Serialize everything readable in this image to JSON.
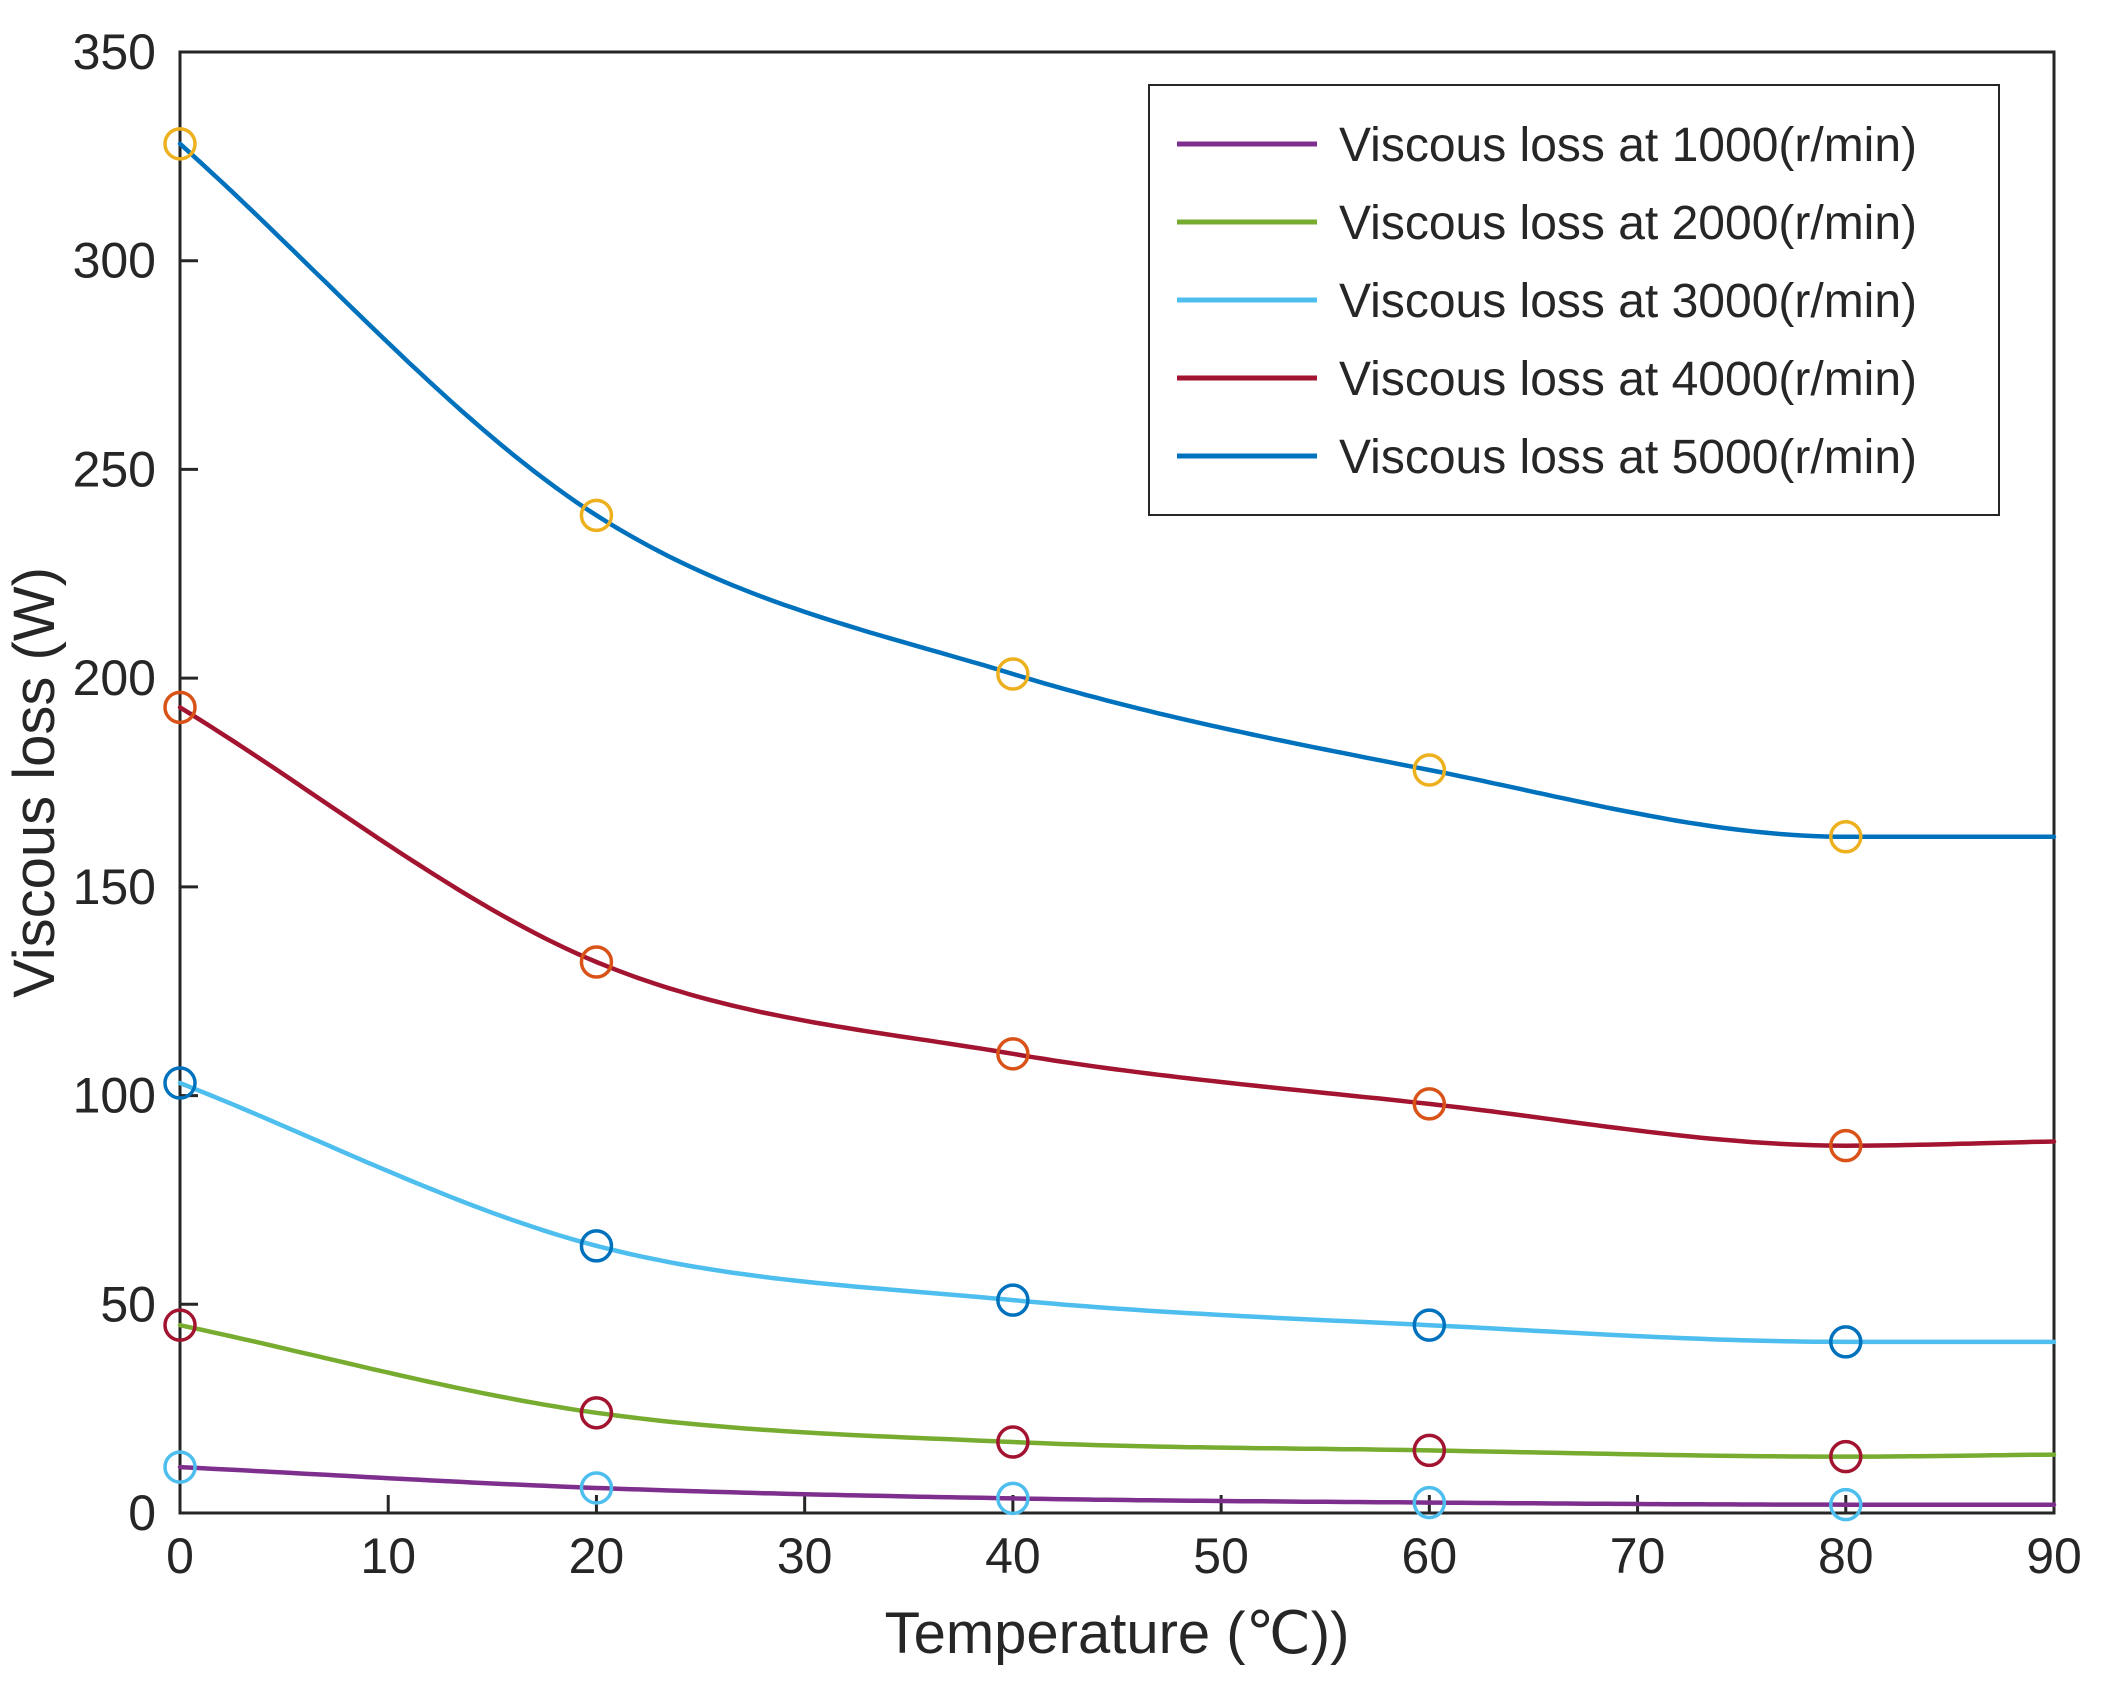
{
  "figure": {
    "background": "#ffffff",
    "axis_color": "#262626",
    "text_color": "#262626"
  },
  "chart_data": {
    "type": "line",
    "title": "",
    "xlabel": "Temperature (℃))",
    "ylabel": "Viscous loss (W)",
    "xlim": [
      0,
      90
    ],
    "ylim": [
      0,
      350
    ],
    "xticks": [
      0,
      10,
      20,
      30,
      40,
      50,
      60,
      70,
      80,
      90
    ],
    "yticks": [
      0,
      50,
      100,
      150,
      200,
      250,
      300,
      350
    ],
    "grid": false,
    "legend_position": "top-right",
    "x": [
      0,
      20,
      40,
      60,
      80,
      90
    ],
    "marker_x": [
      0,
      20,
      40,
      60,
      80
    ],
    "series": [
      {
        "name": "Viscous loss at 1000(r/min)",
        "line_color": "#7E2F8E",
        "marker_color": "#4DBEEE",
        "values": [
          11,
          6,
          3.5,
          2.5,
          2,
          2
        ],
        "marker_values": [
          11,
          6,
          3.5,
          2.5,
          2
        ]
      },
      {
        "name": "Viscous loss at 2000(r/min)",
        "line_color": "#77AC30",
        "marker_color": "#A2142F",
        "values": [
          45,
          24,
          17,
          15,
          13.5,
          14
        ],
        "marker_values": [
          45,
          24,
          17,
          15,
          13.5
        ]
      },
      {
        "name": "Viscous loss at 3000(r/min)",
        "line_color": "#4DBEEE",
        "marker_color": "#0072BD",
        "values": [
          103,
          64,
          51,
          45,
          41,
          41
        ],
        "marker_values": [
          103,
          64,
          51,
          45,
          41
        ]
      },
      {
        "name": "Viscous loss at 4000(r/min)",
        "line_color": "#A2142F",
        "marker_color": "#D95319",
        "values": [
          193,
          132,
          110,
          98,
          88,
          89
        ],
        "marker_values": [
          193,
          132,
          110,
          98,
          88
        ]
      },
      {
        "name": "Viscous loss at 5000(r/min)",
        "line_color": "#0072BD",
        "marker_color": "#EDB120",
        "values": [
          328,
          239,
          201,
          178,
          162,
          162
        ],
        "marker_values": [
          328,
          239,
          201,
          178,
          162
        ]
      }
    ]
  }
}
